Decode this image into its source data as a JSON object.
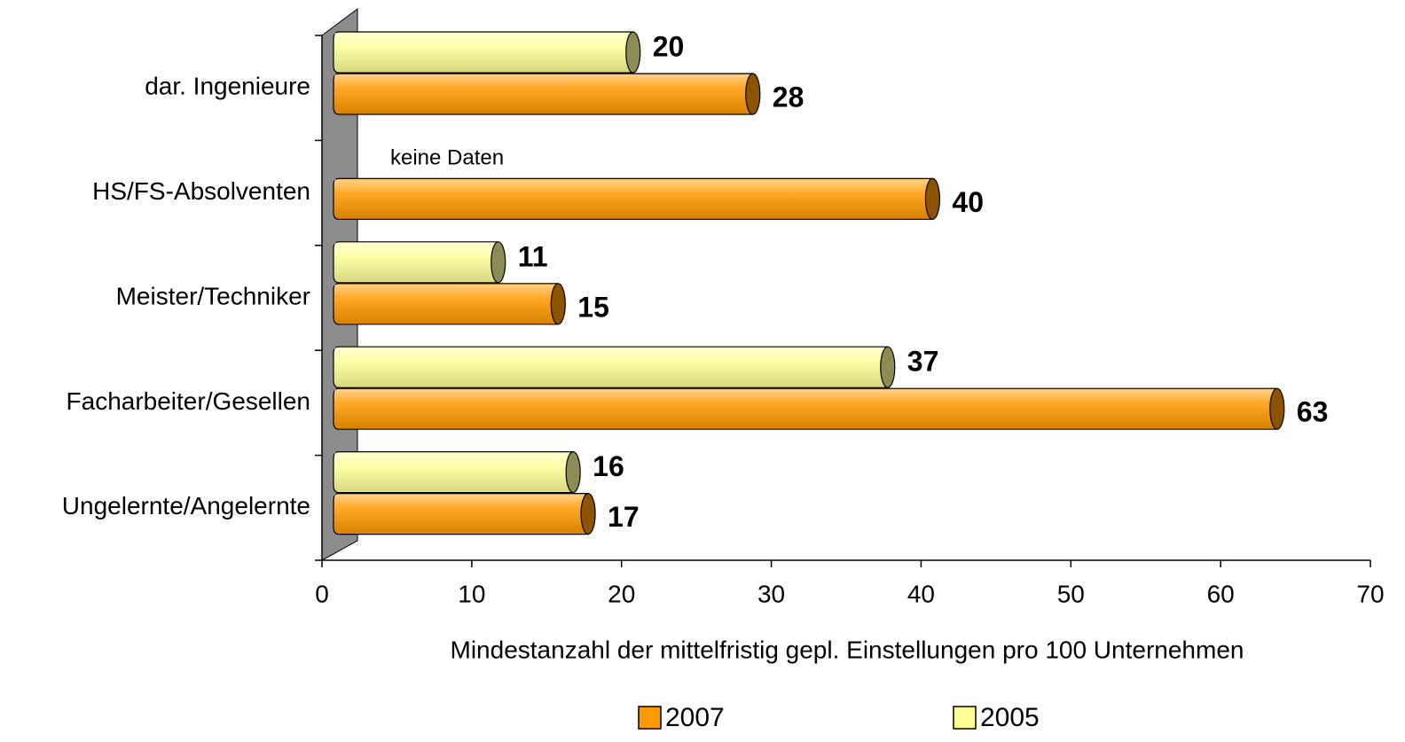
{
  "chart_data": {
    "type": "bar",
    "orientation": "horizontal",
    "xlabel": "Mindestanzahl der mittelfristig gepl. Einstellungen pro 100 Unternehmen",
    "categories": [
      "dar. Ingenieure",
      "HS/FS-Absolventen",
      "Meister/Techniker",
      "Facharbeiter/Gesellen",
      "Ungelernte/Angelernte"
    ],
    "series": [
      {
        "name": "2007",
        "color": "#ff9900",
        "values": [
          28,
          40,
          15,
          63,
          17
        ]
      },
      {
        "name": "2005",
        "color": "#ffff99",
        "values": [
          20,
          null,
          11,
          37,
          16
        ]
      }
    ],
    "annotation": "keine Daten",
    "xlim": [
      0,
      70
    ],
    "xticks": [
      0,
      10,
      20,
      30,
      40,
      50,
      60,
      70
    ],
    "legend": "bottom"
  }
}
